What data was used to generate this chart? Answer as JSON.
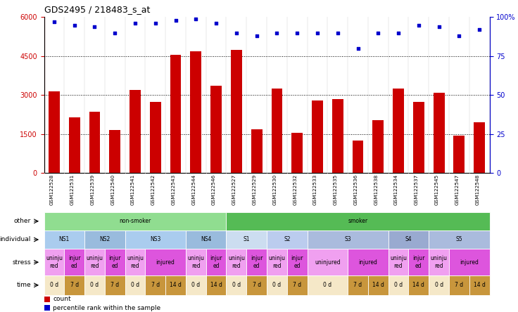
{
  "title": "GDS2495 / 218483_s_at",
  "samples": [
    "GSM122528",
    "GSM122531",
    "GSM122539",
    "GSM122540",
    "GSM122541",
    "GSM122542",
    "GSM122543",
    "GSM122544",
    "GSM122546",
    "GSM122527",
    "GSM122529",
    "GSM122530",
    "GSM122532",
    "GSM122533",
    "GSM122535",
    "GSM122536",
    "GSM122538",
    "GSM122534",
    "GSM122537",
    "GSM122545",
    "GSM122547",
    "GSM122548"
  ],
  "counts": [
    3150,
    2150,
    2350,
    1650,
    3200,
    2750,
    4550,
    4700,
    3350,
    4750,
    1700,
    3250,
    1550,
    2800,
    2850,
    1250,
    2050,
    3250,
    2750,
    3100,
    1450,
    1950
  ],
  "percentile_ranks": [
    97,
    95,
    94,
    90,
    96,
    96,
    98,
    99,
    96,
    90,
    88,
    90,
    90,
    90,
    90,
    80,
    90,
    90,
    95,
    94,
    88,
    92
  ],
  "bar_color": "#cc0000",
  "dot_color": "#0000cc",
  "ylim_left": [
    0,
    6000
  ],
  "ylim_right": [
    0,
    100
  ],
  "yticks_left": [
    0,
    1500,
    3000,
    4500,
    6000
  ],
  "ytick_labels_left": [
    "0",
    "1500",
    "3000",
    "4500",
    "6000"
  ],
  "yticks_right": [
    0,
    25,
    50,
    75,
    100
  ],
  "ytick_labels_right": [
    "0",
    "25",
    "50",
    "75",
    "100%"
  ],
  "other_row": {
    "spans": [
      {
        "label": "non-smoker",
        "start": 0,
        "end": 9,
        "color": "#90dd90"
      },
      {
        "label": "smoker",
        "start": 9,
        "end": 22,
        "color": "#55bb55"
      }
    ]
  },
  "individual_row": {
    "spans": [
      {
        "label": "NS1",
        "start": 0,
        "end": 2,
        "color": "#aaccee"
      },
      {
        "label": "NS2",
        "start": 2,
        "end": 4,
        "color": "#99bbdd"
      },
      {
        "label": "NS3",
        "start": 4,
        "end": 7,
        "color": "#aaccee"
      },
      {
        "label": "NS4",
        "start": 7,
        "end": 9,
        "color": "#99bbdd"
      },
      {
        "label": "S1",
        "start": 9,
        "end": 11,
        "color": "#ccddf0"
      },
      {
        "label": "S2",
        "start": 11,
        "end": 13,
        "color": "#bbccee"
      },
      {
        "label": "S3",
        "start": 13,
        "end": 17,
        "color": "#aabbdd"
      },
      {
        "label": "S4",
        "start": 17,
        "end": 19,
        "color": "#99aad0"
      },
      {
        "label": "S5",
        "start": 19,
        "end": 22,
        "color": "#aabbdd"
      }
    ]
  },
  "stress_row": {
    "cells": [
      {
        "label": "uninju\nred",
        "start": 0,
        "end": 1,
        "color": "#f0a0f0"
      },
      {
        "label": "injur\ned",
        "start": 1,
        "end": 2,
        "color": "#dd55dd"
      },
      {
        "label": "uninju\nred",
        "start": 2,
        "end": 3,
        "color": "#f0a0f0"
      },
      {
        "label": "injur\ned",
        "start": 3,
        "end": 4,
        "color": "#dd55dd"
      },
      {
        "label": "uninju\nred",
        "start": 4,
        "end": 5,
        "color": "#f0a0f0"
      },
      {
        "label": "injured",
        "start": 5,
        "end": 7,
        "color": "#dd55dd"
      },
      {
        "label": "uninju\nred",
        "start": 7,
        "end": 8,
        "color": "#f0a0f0"
      },
      {
        "label": "injur\ned",
        "start": 8,
        "end": 9,
        "color": "#dd55dd"
      },
      {
        "label": "uninju\nred",
        "start": 9,
        "end": 10,
        "color": "#f0a0f0"
      },
      {
        "label": "injur\ned",
        "start": 10,
        "end": 11,
        "color": "#dd55dd"
      },
      {
        "label": "uninju\nred",
        "start": 11,
        "end": 12,
        "color": "#f0a0f0"
      },
      {
        "label": "injur\ned",
        "start": 12,
        "end": 13,
        "color": "#dd55dd"
      },
      {
        "label": "uninjured",
        "start": 13,
        "end": 15,
        "color": "#f0a0f0"
      },
      {
        "label": "injured",
        "start": 15,
        "end": 17,
        "color": "#dd55dd"
      },
      {
        "label": "uninju\nred",
        "start": 17,
        "end": 18,
        "color": "#f0a0f0"
      },
      {
        "label": "injur\ned",
        "start": 18,
        "end": 19,
        "color": "#dd55dd"
      },
      {
        "label": "uninju\nred",
        "start": 19,
        "end": 20,
        "color": "#f0a0f0"
      },
      {
        "label": "injured",
        "start": 20,
        "end": 22,
        "color": "#dd55dd"
      }
    ]
  },
  "time_row": {
    "cells": [
      {
        "label": "0 d",
        "start": 0,
        "end": 1,
        "color": "#f5e8c8"
      },
      {
        "label": "7 d",
        "start": 1,
        "end": 2,
        "color": "#c8963c"
      },
      {
        "label": "0 d",
        "start": 2,
        "end": 3,
        "color": "#f5e8c8"
      },
      {
        "label": "7 d",
        "start": 3,
        "end": 4,
        "color": "#c8963c"
      },
      {
        "label": "0 d",
        "start": 4,
        "end": 5,
        "color": "#f5e8c8"
      },
      {
        "label": "7 d",
        "start": 5,
        "end": 6,
        "color": "#c8963c"
      },
      {
        "label": "14 d",
        "start": 6,
        "end": 7,
        "color": "#c8963c"
      },
      {
        "label": "0 d",
        "start": 7,
        "end": 8,
        "color": "#f5e8c8"
      },
      {
        "label": "14 d",
        "start": 8,
        "end": 9,
        "color": "#c8963c"
      },
      {
        "label": "0 d",
        "start": 9,
        "end": 10,
        "color": "#f5e8c8"
      },
      {
        "label": "7 d",
        "start": 10,
        "end": 11,
        "color": "#c8963c"
      },
      {
        "label": "0 d",
        "start": 11,
        "end": 12,
        "color": "#f5e8c8"
      },
      {
        "label": "7 d",
        "start": 12,
        "end": 13,
        "color": "#c8963c"
      },
      {
        "label": "0 d",
        "start": 13,
        "end": 15,
        "color": "#f5e8c8"
      },
      {
        "label": "7 d",
        "start": 15,
        "end": 16,
        "color": "#c8963c"
      },
      {
        "label": "14 d",
        "start": 16,
        "end": 17,
        "color": "#c8963c"
      },
      {
        "label": "0 d",
        "start": 17,
        "end": 18,
        "color": "#f5e8c8"
      },
      {
        "label": "14 d",
        "start": 18,
        "end": 19,
        "color": "#c8963c"
      },
      {
        "label": "0 d",
        "start": 19,
        "end": 20,
        "color": "#f5e8c8"
      },
      {
        "label": "7 d",
        "start": 20,
        "end": 21,
        "color": "#c8963c"
      },
      {
        "label": "14 d",
        "start": 21,
        "end": 22,
        "color": "#c8963c"
      }
    ]
  },
  "legend_count_color": "#cc0000",
  "legend_pct_color": "#0000cc",
  "bg_color": "#ffffff",
  "xtick_bg": "#d8d8d8"
}
